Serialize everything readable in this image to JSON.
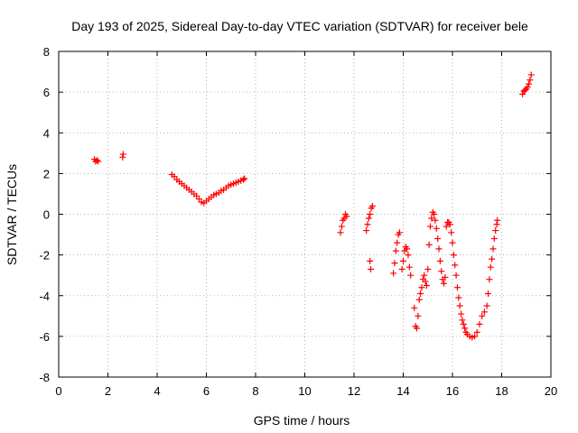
{
  "chart_data": {
    "type": "scatter",
    "title": "Day 193 of 2025, Sidereal Day-to-day VTEC variation (SDTVAR) for receiver bele",
    "xlabel": "GPS time / hours",
    "ylabel": "SDTVAR / TECUs",
    "xlim": [
      0,
      20
    ],
    "ylim": [
      -8,
      8
    ],
    "x_ticks": [
      0,
      2,
      4,
      6,
      8,
      10,
      12,
      14,
      16,
      18,
      20
    ],
    "y_ticks": [
      -8,
      -6,
      -4,
      -2,
      0,
      2,
      4,
      6,
      8
    ],
    "grid": true,
    "marker": "+",
    "series": [
      {
        "name": "SDTVAR",
        "color": "#ff0000",
        "points": [
          [
            1.45,
            2.7
          ],
          [
            1.5,
            2.6
          ],
          [
            1.55,
            2.65
          ],
          [
            1.6,
            2.6
          ],
          [
            2.6,
            2.8
          ],
          [
            2.62,
            2.95
          ],
          [
            4.6,
            1.95
          ],
          [
            4.7,
            1.85
          ],
          [
            4.8,
            1.7
          ],
          [
            4.9,
            1.6
          ],
          [
            5.0,
            1.5
          ],
          [
            5.1,
            1.4
          ],
          [
            5.2,
            1.3
          ],
          [
            5.3,
            1.2
          ],
          [
            5.4,
            1.1
          ],
          [
            5.5,
            1.0
          ],
          [
            5.6,
            0.9
          ],
          [
            5.7,
            0.75
          ],
          [
            5.8,
            0.6
          ],
          [
            5.9,
            0.55
          ],
          [
            6.0,
            0.65
          ],
          [
            6.1,
            0.75
          ],
          [
            6.2,
            0.85
          ],
          [
            6.3,
            0.95
          ],
          [
            6.4,
            1.0
          ],
          [
            6.5,
            1.05
          ],
          [
            6.6,
            1.15
          ],
          [
            6.7,
            1.2
          ],
          [
            6.8,
            1.3
          ],
          [
            6.9,
            1.4
          ],
          [
            7.0,
            1.45
          ],
          [
            7.1,
            1.5
          ],
          [
            7.2,
            1.55
          ],
          [
            7.3,
            1.6
          ],
          [
            7.4,
            1.65
          ],
          [
            7.5,
            1.7
          ],
          [
            7.55,
            1.75
          ],
          [
            11.45,
            -0.9
          ],
          [
            11.5,
            -0.6
          ],
          [
            11.55,
            -0.3
          ],
          [
            11.6,
            -0.2
          ],
          [
            11.65,
            0.0
          ],
          [
            11.7,
            -0.1
          ],
          [
            12.5,
            -0.8
          ],
          [
            12.55,
            -0.5
          ],
          [
            12.6,
            -0.2
          ],
          [
            12.65,
            0.0
          ],
          [
            12.7,
            0.3
          ],
          [
            12.75,
            0.4
          ],
          [
            12.65,
            -2.3
          ],
          [
            12.68,
            -2.7
          ],
          [
            13.6,
            -2.9
          ],
          [
            13.65,
            -2.4
          ],
          [
            13.7,
            -1.8
          ],
          [
            13.75,
            -1.4
          ],
          [
            13.8,
            -1.0
          ],
          [
            13.85,
            -0.9
          ],
          [
            13.95,
            -2.7
          ],
          [
            14.0,
            -2.3
          ],
          [
            14.05,
            -1.8
          ],
          [
            14.1,
            -1.6
          ],
          [
            14.15,
            -1.7
          ],
          [
            14.2,
            -2.0
          ],
          [
            14.25,
            -2.6
          ],
          [
            14.3,
            -3.0
          ],
          [
            14.45,
            -4.6
          ],
          [
            14.5,
            -5.5
          ],
          [
            14.55,
            -5.6
          ],
          [
            14.6,
            -5.0
          ],
          [
            14.65,
            -4.2
          ],
          [
            14.7,
            -3.9
          ],
          [
            14.75,
            -3.6
          ],
          [
            14.8,
            -3.2
          ],
          [
            14.85,
            -3.0
          ],
          [
            14.9,
            -3.3
          ],
          [
            14.95,
            -3.5
          ],
          [
            15.0,
            -2.7
          ],
          [
            15.05,
            -1.5
          ],
          [
            15.1,
            -0.6
          ],
          [
            15.15,
            -0.2
          ],
          [
            15.2,
            0.1
          ],
          [
            15.25,
            0.0
          ],
          [
            15.3,
            -0.3
          ],
          [
            15.35,
            -0.7
          ],
          [
            15.4,
            -1.2
          ],
          [
            15.45,
            -1.7
          ],
          [
            15.5,
            -2.3
          ],
          [
            15.55,
            -2.8
          ],
          [
            15.6,
            -3.2
          ],
          [
            15.65,
            -3.4
          ],
          [
            15.7,
            -3.1
          ],
          [
            15.75,
            -0.6
          ],
          [
            15.8,
            -0.4
          ],
          [
            15.85,
            -0.4
          ],
          [
            15.9,
            -0.5
          ],
          [
            15.95,
            -0.9
          ],
          [
            16.0,
            -1.4
          ],
          [
            16.05,
            -2.0
          ],
          [
            16.1,
            -2.5
          ],
          [
            16.15,
            -3.0
          ],
          [
            16.2,
            -3.6
          ],
          [
            16.25,
            -4.1
          ],
          [
            16.3,
            -4.5
          ],
          [
            16.35,
            -4.9
          ],
          [
            16.4,
            -5.2
          ],
          [
            16.45,
            -5.4
          ],
          [
            16.5,
            -5.6
          ],
          [
            16.55,
            -5.8
          ],
          [
            16.6,
            -5.9
          ],
          [
            16.7,
            -6.0
          ],
          [
            16.8,
            -6.05
          ],
          [
            16.9,
            -6.0
          ],
          [
            17.0,
            -5.8
          ],
          [
            17.1,
            -5.4
          ],
          [
            17.2,
            -5.0
          ],
          [
            17.3,
            -4.8
          ],
          [
            17.4,
            -4.5
          ],
          [
            17.45,
            -3.9
          ],
          [
            17.5,
            -3.2
          ],
          [
            17.55,
            -2.6
          ],
          [
            17.6,
            -2.2
          ],
          [
            17.65,
            -1.7
          ],
          [
            17.7,
            -1.2
          ],
          [
            17.75,
            -0.8
          ],
          [
            17.8,
            -0.5
          ],
          [
            17.82,
            -0.3
          ],
          [
            18.85,
            5.9
          ],
          [
            18.9,
            6.05
          ],
          [
            18.95,
            6.1
          ],
          [
            19.0,
            6.15
          ],
          [
            19.05,
            6.25
          ],
          [
            19.1,
            6.4
          ],
          [
            19.15,
            6.6
          ],
          [
            19.2,
            6.85
          ]
        ]
      }
    ]
  }
}
